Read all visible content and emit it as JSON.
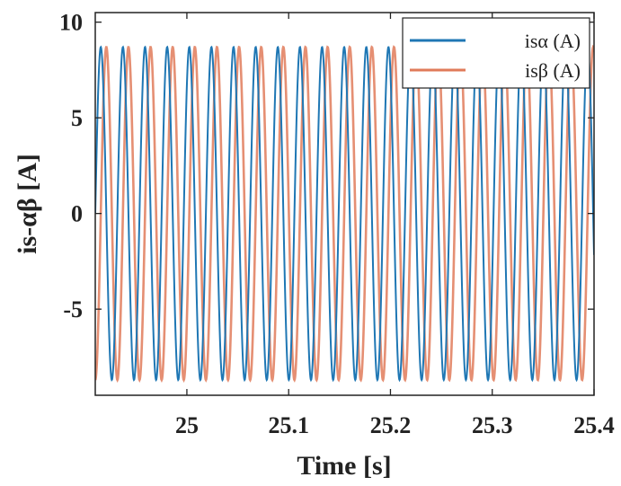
{
  "chart_data": {
    "type": "line",
    "xlabel": "Time [s]",
    "ylabel": "is-αβ [A]",
    "xlim": [
      24.91,
      25.4
    ],
    "ylim": [
      -9.5,
      10.5
    ],
    "xticks": [
      25,
      25.1,
      25.2,
      25.3,
      25.4
    ],
    "xtick_labels": [
      "25",
      "25.1",
      "25.2",
      "25.3",
      "25.4"
    ],
    "yticks": [
      10,
      5,
      0,
      -5
    ],
    "ytick_labels": [
      "10",
      "5",
      "0",
      "-5"
    ],
    "grid": false,
    "legend_position": "top-right",
    "series": [
      {
        "name": "isα (A)",
        "color": "#1f77b4",
        "waveform": "sine",
        "amplitude": 8.7,
        "frequency_hz": 46,
        "phase_deg": 0,
        "x_start": 24.91,
        "x_end": 25.4
      },
      {
        "name": "isβ (A)",
        "color": "#e07b5a",
        "waveform": "sine",
        "amplitude": 8.7,
        "frequency_hz": 46,
        "phase_deg": -90,
        "x_start": 24.91,
        "x_end": 25.4
      }
    ]
  }
}
